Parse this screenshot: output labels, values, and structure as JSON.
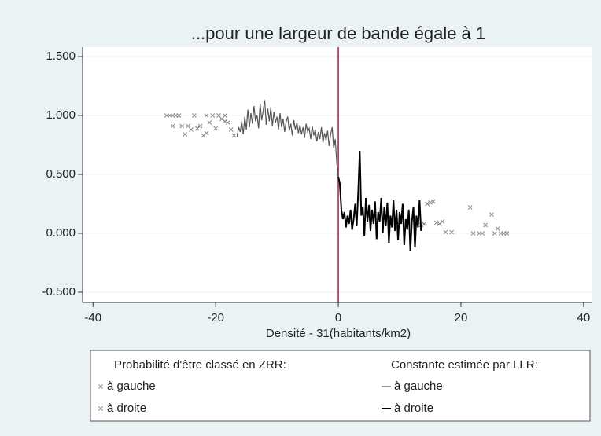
{
  "chart_data": {
    "type": "scatter",
    "title": "...pour une largeur de bande égale à 1",
    "x_label": "Densité - 31(habitants/km2)",
    "xlim": [
      -41.7,
      41.3
    ],
    "ylim": [
      -0.587,
      1.58
    ],
    "xticks": [
      -40,
      -20,
      0,
      20,
      40
    ],
    "yticks": [
      {
        "value": 1.5,
        "label": "1.500"
      },
      {
        "value": 1,
        "label": "1.000"
      },
      {
        "value": 0.5,
        "label": "0.500"
      },
      {
        "value": 0,
        "label": "0.000"
      },
      {
        "value": -0.5,
        "label": "-0.500"
      }
    ],
    "grid": true,
    "xline": 0,
    "xline_color": "#a0203a",
    "legend_titles": [
      "Probabilité d'être classé en ZRR:",
      "Constante estimée par LLR:"
    ],
    "series": [
      {
        "name": "à gauche",
        "style": "scatter",
        "color": "#888888",
        "x": [
          -28,
          -27.5,
          -27,
          -26.5,
          -26,
          -27,
          -25.5,
          -25,
          -24.5,
          -24,
          -23.5,
          -23,
          -22.5,
          -22,
          -21.5,
          -21.5,
          -21,
          -20.5,
          -20,
          -19.5,
          -19,
          -18.5,
          -18.5,
          -18,
          -17.5,
          -17
        ],
        "values": [
          1.0,
          1.0,
          1.0,
          1.0,
          1.0,
          0.91,
          0.91,
          0.84,
          0.91,
          0.88,
          1.0,
          0.89,
          0.91,
          0.83,
          1.0,
          0.85,
          0.94,
          1.0,
          0.89,
          1.0,
          0.97,
          1.0,
          0.95,
          0.94,
          0.88,
          0.83
        ]
      },
      {
        "name": "à droite",
        "style": "scatter",
        "color": "#888888",
        "x": [
          13.5,
          14,
          14.5,
          15,
          15.5,
          16,
          16.5,
          17,
          17.5,
          18.5,
          21.5,
          22,
          23,
          23.5,
          24,
          25,
          25.5,
          26,
          26.5,
          27,
          27.5
        ],
        "values": [
          0.07,
          0.08,
          0.25,
          0.26,
          0.27,
          0.09,
          0.08,
          0.1,
          0.01,
          0.01,
          0.22,
          0.0,
          0.0,
          0.0,
          0.07,
          0.16,
          0.0,
          0.04,
          0.0,
          0.0,
          0.0
        ]
      },
      {
        "name": "à gauche",
        "style": "line",
        "color": "#555555",
        "width": 1.2,
        "x": [
          -16.5,
          -16.25,
          -16,
          -15.75,
          -15.5,
          -15.25,
          -15,
          -14.75,
          -14.5,
          -14.25,
          -14,
          -13.75,
          -13.5,
          -13.25,
          -13,
          -12.75,
          -12.5,
          -12.25,
          -12,
          -11.75,
          -11.5,
          -11.25,
          -11,
          -10.75,
          -10.5,
          -10.25,
          -10,
          -9.75,
          -9.5,
          -9.25,
          -9,
          -8.75,
          -8.5,
          -8.25,
          -8,
          -7.75,
          -7.5,
          -7.25,
          -7,
          -6.75,
          -6.5,
          -6.25,
          -6,
          -5.75,
          -5.5,
          -5.25,
          -5,
          -4.75,
          -4.5,
          -4.25,
          -4,
          -3.75,
          -3.5,
          -3.25,
          -3,
          -2.75,
          -2.5,
          -2.25,
          -2,
          -1.75,
          -1.5,
          -1.25,
          -1,
          -0.75,
          -0.5,
          -0.25,
          0
        ],
        "values": [
          0.82,
          0.9,
          0.86,
          0.95,
          0.84,
          0.99,
          0.88,
          1.05,
          0.9,
          1.02,
          0.93,
          1.08,
          0.95,
          1.0,
          0.89,
          1.1,
          0.96,
          1.04,
          1.13,
          0.92,
          1.06,
          0.95,
          1.07,
          0.91,
          1.03,
          0.94,
          0.99,
          0.88,
          1.02,
          0.9,
          0.97,
          0.86,
          0.95,
          0.99,
          0.87,
          0.93,
          0.83,
          0.96,
          0.88,
          0.94,
          0.85,
          0.92,
          0.84,
          0.9,
          0.81,
          0.93,
          0.86,
          0.89,
          0.8,
          0.91,
          0.83,
          0.88,
          0.78,
          0.86,
          0.8,
          0.9,
          0.77,
          0.85,
          0.79,
          0.87,
          0.74,
          0.84,
          0.9,
          0.72,
          0.8,
          0.6,
          0.47
        ]
      },
      {
        "name": "à droite",
        "style": "line",
        "color": "#000000",
        "width": 2,
        "x": [
          0,
          0.25,
          0.5,
          0.75,
          1,
          1.25,
          1.5,
          1.75,
          2,
          2.25,
          2.5,
          2.75,
          3,
          3.25,
          3.5,
          3.75,
          4,
          4.25,
          4.5,
          4.75,
          5,
          5.25,
          5.5,
          5.75,
          6,
          6.25,
          6.5,
          6.75,
          7,
          7.25,
          7.5,
          7.75,
          8,
          8.25,
          8.5,
          8.75,
          9,
          9.25,
          9.5,
          9.75,
          10,
          10.25,
          10.5,
          10.75,
          11,
          11.25,
          11.5,
          11.75,
          12,
          12.25,
          12.5,
          12.75,
          13,
          13.25,
          13.5
        ],
        "values": [
          0.48,
          0.42,
          0.2,
          0.12,
          0.18,
          0.05,
          0.15,
          0.08,
          0.2,
          0.03,
          0.12,
          0.25,
          0.06,
          0.35,
          0.7,
          0.15,
          0.22,
          -0.02,
          0.3,
          0.1,
          0.24,
          0.02,
          0.2,
          0.08,
          0.27,
          -0.05,
          0.18,
          0.1,
          0.3,
          0.0,
          0.22,
          0.06,
          0.26,
          -0.08,
          0.15,
          0.05,
          0.28,
          0.02,
          0.2,
          -0.06,
          0.18,
          0.08,
          0.25,
          -0.1,
          0.12,
          0.03,
          0.2,
          -0.15,
          0.1,
          0.22,
          -0.12,
          0.15,
          0.05,
          0.28,
          0.02
        ]
      }
    ]
  }
}
